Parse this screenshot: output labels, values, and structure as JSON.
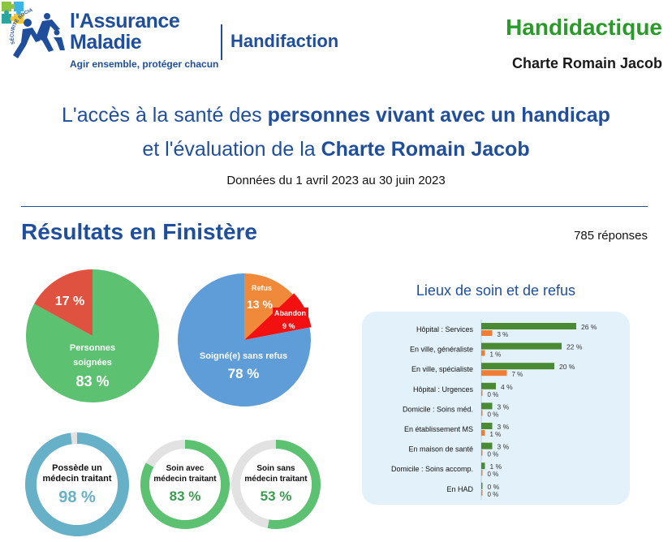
{
  "header": {
    "brand_line1": "l'Assurance",
    "brand_line2": "Maladie",
    "tagline": "Agir ensemble, protéger chacun",
    "logo_arc_text": "SÉCURITÉ SOCIALE",
    "handifaction": "Handifaction",
    "handidactique": "Handidactique",
    "charte": "Charte Romain Jacob"
  },
  "title": {
    "line1_plain": "L'accès à la santé des ",
    "line1_bold": "personnes vivant avec un handicap",
    "line2_plain": "et l'évaluation de la ",
    "line2_bold": "Charte Romain Jacob",
    "dates": "Données du 1 avril 2023 au 30 juin 2023"
  },
  "section": {
    "results_title": "Résultats en Finistère",
    "responses": "785 réponses"
  },
  "colors": {
    "navy": "#1f4e9c",
    "green": "#5cc171",
    "red": "#e05240",
    "blue": "#5f9dd8",
    "orange": "#f08a3a",
    "bright_red": "#f21010",
    "teal": "#66b0c8",
    "grey": "#e2e2e2",
    "bar_green": "#4a8a33",
    "bar_orange": "#ef7d35"
  },
  "chart_data": [
    {
      "type": "pie",
      "labels": [
        "Personnes soignées",
        ""
      ],
      "values": [
        83,
        17
      ],
      "value_labels": [
        "83 %",
        "17 %"
      ],
      "label_line1": "Personnes",
      "label_line2": "soignées"
    },
    {
      "type": "pie",
      "labels": [
        "Soigné(e) sans refus",
        "Refus",
        "Abandon"
      ],
      "values": [
        78,
        13,
        9
      ],
      "value_labels": [
        "78 %",
        "13 %",
        "9 %"
      ]
    },
    {
      "type": "pie",
      "variant": "donut",
      "label_line1": "Possède un",
      "label_line2": "médecin traitant",
      "value": 98,
      "value_label": "98 %"
    },
    {
      "type": "pie",
      "variant": "donut",
      "label_line1": "Soin avec",
      "label_line2": "médecin traitant",
      "value": 83,
      "value_label": "83 %"
    },
    {
      "type": "pie",
      "variant": "donut",
      "label_line1": "Soin sans",
      "label_line2": "médecin traitant",
      "value": 53,
      "value_label": "53 %"
    },
    {
      "type": "bar",
      "orientation": "horizontal",
      "title": "Lieux de soin et de refus",
      "categories": [
        "Hôpital : Services",
        "En ville, généraliste",
        "En ville, spécialiste",
        "Hôpital : Urgences",
        "Domicile : Soins méd.",
        "En établissement MS",
        "En maison de santé",
        "Domicile : Soins accomp.",
        "En HAD"
      ],
      "series": [
        {
          "values": [
            26,
            22,
            20,
            4,
            3,
            3,
            3,
            1,
            0
          ],
          "value_labels": [
            "26 %",
            "22 %",
            "20 %",
            "4 %",
            "3 %",
            "3 %",
            "3 %",
            "1 %",
            "0 %"
          ]
        },
        {
          "values": [
            3,
            1,
            7,
            0,
            0,
            1,
            0,
            0,
            0
          ],
          "value_labels": [
            "3 %",
            "1 %",
            "7 %",
            "0 %",
            "0 %",
            "1 %",
            "0 %",
            "0 %",
            "0 %"
          ]
        }
      ]
    }
  ]
}
